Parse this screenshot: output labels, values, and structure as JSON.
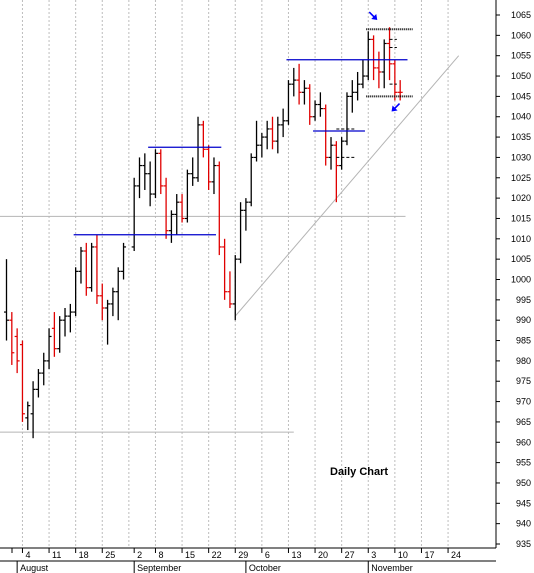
{
  "chart_data": {
    "type": "ohlc",
    "title": "Daily Chart",
    "xlabel": "",
    "ylabel": "",
    "ylim": [
      933,
      1069
    ],
    "y_ticks": [
      935,
      940,
      945,
      950,
      955,
      960,
      965,
      970,
      975,
      980,
      985,
      990,
      995,
      1000,
      1005,
      1010,
      1015,
      1020,
      1025,
      1030,
      1035,
      1040,
      1045,
      1050,
      1055,
      1060,
      1065
    ],
    "x_day_ticks": [
      {
        "label": "4",
        "date": "Aug 4"
      },
      {
        "label": "11",
        "date": "Aug 11"
      },
      {
        "label": "18",
        "date": "Aug 18"
      },
      {
        "label": "25",
        "date": "Aug 25"
      },
      {
        "label": "2",
        "date": "Sep 2"
      },
      {
        "label": "8",
        "date": "Sep 8"
      },
      {
        "label": "15",
        "date": "Sep 15"
      },
      {
        "label": "22",
        "date": "Sep 22"
      },
      {
        "label": "29",
        "date": "Sep 29"
      },
      {
        "label": "6",
        "date": "Oct 6"
      },
      {
        "label": "13",
        "date": "Oct 13"
      },
      {
        "label": "20",
        "date": "Oct 20"
      },
      {
        "label": "27",
        "date": "Oct 27"
      },
      {
        "label": "3",
        "date": "Nov 3"
      },
      {
        "label": "10",
        "date": "Nov 10"
      },
      {
        "label": "17",
        "date": "Nov 17"
      },
      {
        "label": "24",
        "date": "Nov 24"
      }
    ],
    "month_labels": [
      {
        "label": "August",
        "start_date": "Aug 1"
      },
      {
        "label": "September",
        "start_date": "Sep 2"
      },
      {
        "label": "October",
        "start_date": "Oct 1"
      },
      {
        "label": "November",
        "start_date": "Nov 3"
      }
    ],
    "grid": true,
    "colors": {
      "up": "#000000",
      "down": "#e00000",
      "resistance": "#0000cc",
      "trend": "#b4b4b4",
      "arrow": "#0000ff"
    },
    "bars": [
      {
        "date": "Jul 30",
        "open": 992,
        "high": 1005,
        "low": 985,
        "close": 990,
        "dir": "up"
      },
      {
        "date": "Jul 31",
        "open": 990,
        "high": 992,
        "low": 979,
        "close": 982,
        "dir": "down"
      },
      {
        "date": "Aug 1",
        "open": 986,
        "high": 988,
        "low": 977,
        "close": 980,
        "dir": "down"
      },
      {
        "date": "Aug 4",
        "open": 984,
        "high": 985,
        "low": 965,
        "close": 967,
        "dir": "down"
      },
      {
        "date": "Aug 5",
        "open": 966,
        "high": 970,
        "low": 963,
        "close": 969,
        "dir": "up"
      },
      {
        "date": "Aug 6",
        "open": 967,
        "high": 975,
        "low": 961,
        "close": 973,
        "dir": "up"
      },
      {
        "date": "Aug 7",
        "open": 973,
        "high": 978,
        "low": 971,
        "close": 977,
        "dir": "up"
      },
      {
        "date": "Aug 8",
        "open": 977,
        "high": 982,
        "low": 974,
        "close": 980,
        "dir": "up"
      },
      {
        "date": "Aug 11",
        "open": 980,
        "high": 988,
        "low": 978,
        "close": 986,
        "dir": "up"
      },
      {
        "date": "Aug 12",
        "open": 988,
        "high": 992,
        "low": 981,
        "close": 983,
        "dir": "down"
      },
      {
        "date": "Aug 13",
        "open": 983,
        "high": 991,
        "low": 982,
        "close": 990,
        "dir": "up"
      },
      {
        "date": "Aug 14",
        "open": 990,
        "high": 993,
        "low": 986,
        "close": 991,
        "dir": "up"
      },
      {
        "date": "Aug 15",
        "open": 991,
        "high": 994,
        "low": 987,
        "close": 992,
        "dir": "up"
      },
      {
        "date": "Aug 18",
        "open": 992,
        "high": 1003,
        "low": 991,
        "close": 1002,
        "dir": "up"
      },
      {
        "date": "Aug 19",
        "open": 1002,
        "high": 1008,
        "low": 999,
        "close": 1007,
        "dir": "up"
      },
      {
        "date": "Aug 20",
        "open": 1007,
        "high": 1009,
        "low": 996,
        "close": 998,
        "dir": "down"
      },
      {
        "date": "Aug 21",
        "open": 998,
        "high": 1009,
        "low": 997,
        "close": 1008,
        "dir": "up"
      },
      {
        "date": "Aug 22",
        "open": 1008,
        "high": 1011,
        "low": 994,
        "close": 996,
        "dir": "down"
      },
      {
        "date": "Aug 25",
        "open": 996,
        "high": 999,
        "low": 990,
        "close": 993,
        "dir": "down"
      },
      {
        "date": "Aug 26",
        "open": 993,
        "high": 995,
        "low": 984,
        "close": 994,
        "dir": "up"
      },
      {
        "date": "Aug 27",
        "open": 994,
        "high": 998,
        "low": 991,
        "close": 997,
        "dir": "up"
      },
      {
        "date": "Aug 28",
        "open": 997,
        "high": 1003,
        "low": 990,
        "close": 1002,
        "dir": "up"
      },
      {
        "date": "Aug 29",
        "open": 1002,
        "high": 1009,
        "low": 1000,
        "close": 1008,
        "dir": "up"
      },
      {
        "date": "Sep 2",
        "open": 1008,
        "high": 1025,
        "low": 1007,
        "close": 1023,
        "dir": "up"
      },
      {
        "date": "Sep 3",
        "open": 1023,
        "high": 1030,
        "low": 1020,
        "close": 1028,
        "dir": "up"
      },
      {
        "date": "Sep 4",
        "open": 1028,
        "high": 1031,
        "low": 1022,
        "close": 1026,
        "dir": "up"
      },
      {
        "date": "Sep 5",
        "open": 1026,
        "high": 1029,
        "low": 1018,
        "close": 1021,
        "dir": "up"
      },
      {
        "date": "Sep 8",
        "open": 1021,
        "high": 1032,
        "low": 1020,
        "close": 1031,
        "dir": "up"
      },
      {
        "date": "Sep 9",
        "open": 1031,
        "high": 1032,
        "low": 1021,
        "close": 1023,
        "dir": "down"
      },
      {
        "date": "Sep 10",
        "open": 1023,
        "high": 1025,
        "low": 1010,
        "close": 1012,
        "dir": "down"
      },
      {
        "date": "Sep 11",
        "open": 1012,
        "high": 1017,
        "low": 1009,
        "close": 1016,
        "dir": "up"
      },
      {
        "date": "Sep 12",
        "open": 1016,
        "high": 1021,
        "low": 1011,
        "close": 1019,
        "dir": "up"
      },
      {
        "date": "Sep 15",
        "open": 1019,
        "high": 1021,
        "low": 1014,
        "close": 1015,
        "dir": "down"
      },
      {
        "date": "Sep 16",
        "open": 1015,
        "high": 1027,
        "low": 1014,
        "close": 1026,
        "dir": "up"
      },
      {
        "date": "Sep 17",
        "open": 1026,
        "high": 1030,
        "low": 1023,
        "close": 1025,
        "dir": "up"
      },
      {
        "date": "Sep 18",
        "open": 1025,
        "high": 1040,
        "low": 1024,
        "close": 1038,
        "dir": "up"
      },
      {
        "date": "Sep 19",
        "open": 1038,
        "high": 1039,
        "low": 1030,
        "close": 1032,
        "dir": "down"
      },
      {
        "date": "Sep 22",
        "open": 1032,
        "high": 1033,
        "low": 1022,
        "close": 1024,
        "dir": "down"
      },
      {
        "date": "Sep 23",
        "open": 1024,
        "high": 1030,
        "low": 1021,
        "close": 1028,
        "dir": "up"
      },
      {
        "date": "Sep 24",
        "open": 1028,
        "high": 1029,
        "low": 1006,
        "close": 1008,
        "dir": "down"
      },
      {
        "date": "Sep 25",
        "open": 1008,
        "high": 1010,
        "low": 995,
        "close": 997,
        "dir": "down"
      },
      {
        "date": "Sep 26",
        "open": 997,
        "high": 1002,
        "low": 993,
        "close": 994,
        "dir": "down"
      },
      {
        "date": "Sep 29",
        "open": 994,
        "high": 1006,
        "low": 990,
        "close": 1005,
        "dir": "up"
      },
      {
        "date": "Sep 30",
        "open": 1005,
        "high": 1019,
        "low": 1004,
        "close": 1017,
        "dir": "up"
      },
      {
        "date": "Oct 1",
        "open": 1017,
        "high": 1020,
        "low": 1012,
        "close": 1019,
        "dir": "up"
      },
      {
        "date": "Oct 2",
        "open": 1019,
        "high": 1031,
        "low": 1018,
        "close": 1030,
        "dir": "up"
      },
      {
        "date": "Oct 3",
        "open": 1030,
        "high": 1039,
        "low": 1029,
        "close": 1033,
        "dir": "up"
      },
      {
        "date": "Oct 6",
        "open": 1033,
        "high": 1036,
        "low": 1030,
        "close": 1035,
        "dir": "up"
      },
      {
        "date": "Oct 7",
        "open": 1035,
        "high": 1039,
        "low": 1032,
        "close": 1037,
        "dir": "up"
      },
      {
        "date": "Oct 8",
        "open": 1037,
        "high": 1040,
        "low": 1032,
        "close": 1034,
        "dir": "down"
      },
      {
        "date": "Oct 9",
        "open": 1034,
        "high": 1040,
        "low": 1031,
        "close": 1038,
        "dir": "up"
      },
      {
        "date": "Oct 10",
        "open": 1038,
        "high": 1042,
        "low": 1035,
        "close": 1039,
        "dir": "up"
      },
      {
        "date": "Oct 13",
        "open": 1039,
        "high": 1049,
        "low": 1038,
        "close": 1048,
        "dir": "up"
      },
      {
        "date": "Oct 14",
        "open": 1048,
        "high": 1052,
        "low": 1045,
        "close": 1049,
        "dir": "up"
      },
      {
        "date": "Oct 15",
        "open": 1049,
        "high": 1053,
        "low": 1043,
        "close": 1046,
        "dir": "down"
      },
      {
        "date": "Oct 16",
        "open": 1046,
        "high": 1049,
        "low": 1043,
        "close": 1047,
        "dir": "up"
      },
      {
        "date": "Oct 17",
        "open": 1047,
        "high": 1048,
        "low": 1038,
        "close": 1040,
        "dir": "down"
      },
      {
        "date": "Oct 20",
        "open": 1040,
        "high": 1044,
        "low": 1039,
        "close": 1043,
        "dir": "up"
      },
      {
        "date": "Oct 21",
        "open": 1043,
        "high": 1046,
        "low": 1040,
        "close": 1042,
        "dir": "up"
      },
      {
        "date": "Oct 22",
        "open": 1042,
        "high": 1043,
        "low": 1028,
        "close": 1030,
        "dir": "down"
      },
      {
        "date": "Oct 23",
        "open": 1030,
        "high": 1035,
        "low": 1027,
        "close": 1033,
        "dir": "up"
      },
      {
        "date": "Oct 24",
        "open": 1033,
        "high": 1034,
        "low": 1019,
        "close": 1028,
        "dir": "down"
      },
      {
        "date": "Oct 27",
        "open": 1028,
        "high": 1035,
        "low": 1027,
        "close": 1034,
        "dir": "up"
      },
      {
        "date": "Oct 28",
        "open": 1034,
        "high": 1046,
        "low": 1033,
        "close": 1045,
        "dir": "up"
      },
      {
        "date": "Oct 29",
        "open": 1045,
        "high": 1049,
        "low": 1041,
        "close": 1046,
        "dir": "up"
      },
      {
        "date": "Oct 30",
        "open": 1046,
        "high": 1051,
        "low": 1044,
        "close": 1048,
        "dir": "up"
      },
      {
        "date": "Oct 31",
        "open": 1048,
        "high": 1054,
        "low": 1047,
        "close": 1050,
        "dir": "up"
      },
      {
        "date": "Nov 3",
        "open": 1050,
        "high": 1061,
        "low": 1049,
        "close": 1059,
        "dir": "up"
      },
      {
        "date": "Nov 4",
        "open": 1059,
        "high": 1060,
        "low": 1049,
        "close": 1052,
        "dir": "down"
      },
      {
        "date": "Nov 5",
        "open": 1052,
        "high": 1056,
        "low": 1047,
        "close": 1051,
        "dir": "down"
      },
      {
        "date": "Nov 6",
        "open": 1051,
        "high": 1059,
        "low": 1047,
        "close": 1058,
        "dir": "up"
      },
      {
        "date": "Nov 7",
        "open": 1058,
        "high": 1062,
        "low": 1049,
        "close": 1053,
        "dir": "down"
      },
      {
        "date": "Nov 10",
        "open": 1053,
        "high": 1054,
        "low": 1044,
        "close": 1046,
        "dir": "down"
      },
      {
        "date": "Nov 11",
        "open": 1046,
        "high": 1049,
        "low": 1044,
        "close": 1046,
        "dir": "down"
      }
    ],
    "resistance_lines": [
      {
        "start_date": "Aug 18",
        "end_date": "Sep 23",
        "value": 1011
      },
      {
        "start_date": "Sep 5",
        "end_date": "Sep 24",
        "value": 1032.5
      },
      {
        "start_date": "Oct 13",
        "end_date": "Nov 12",
        "value": 1054
      },
      {
        "start_date": "Oct 20",
        "end_date": "Oct 31",
        "value": 1036.5
      }
    ],
    "channel_lines": [
      {
        "start_date": "Nov 3",
        "end_date": "Nov 13",
        "value": 1061.5
      },
      {
        "start_date": "Nov 3",
        "end_date": "Nov 13",
        "value": 1045
      }
    ],
    "dashed_levels": [
      {
        "start_date": "Oct 24",
        "end_date": "Oct 29",
        "value": 1037
      },
      {
        "start_date": "Oct 24",
        "end_date": "Oct 29",
        "value": 1030
      },
      {
        "start_date": "Nov 7",
        "end_date": "Nov 10",
        "value": 1059
      },
      {
        "start_date": "Nov 7",
        "end_date": "Nov 10",
        "value": 1057
      },
      {
        "start_date": "Nov 7",
        "end_date": "Nov 10",
        "value": 1048
      }
    ],
    "trend_line": {
      "start_date": "Sep 29",
      "start_value": 991,
      "end_date": "Nov 26",
      "end_value": 1055
    },
    "horizontal_levels": [
      {
        "start_date": "Jul 30",
        "end_date": "Nov 12",
        "value": 1015.5
      },
      {
        "start_date": "Jul 30",
        "end_date": "Oct 14",
        "value": 962.5
      }
    ],
    "arrows": [
      {
        "date": "Nov 3",
        "value": 1065,
        "direction": "down-right"
      },
      {
        "date": "Nov 7",
        "value": 1042.5,
        "direction": "up-right"
      }
    ],
    "annotation": {
      "text": "Daily Chart",
      "date": "Oct 20",
      "value": 953
    }
  }
}
